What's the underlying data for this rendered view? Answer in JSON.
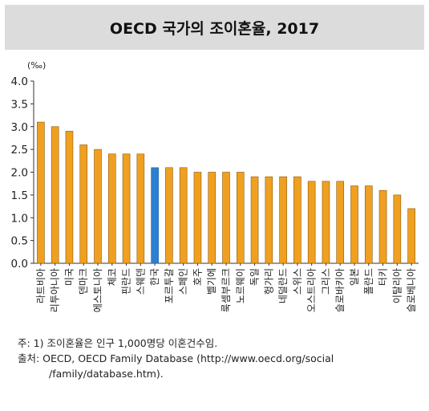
{
  "title": "OECD 국가의 조이혼율, 2017",
  "notes": {
    "line1": "주: 1) 조이혼율은 인구 1,000명당 이혼건수임.",
    "line2": "출처: OECD, OECD Family Database (http://www.oecd.org/social",
    "line3": "/family/database.htm)."
  },
  "colors": {
    "bar": "#f0a020",
    "highlight": "#2c7fd1",
    "bar_edge": "#8a5a10"
  },
  "chart_data": {
    "type": "bar",
    "title": "OECD 국가의 조이혼율, 2017",
    "unit_label": "(‰)",
    "ylim": [
      0,
      4
    ],
    "yticks": [
      "0.0",
      "0.5",
      "1.0",
      "1.5",
      "2.0",
      "2.5",
      "3.0",
      "3.5",
      "4.0"
    ],
    "grid": false,
    "categories": [
      "라트비아",
      "리투아니아",
      "미국",
      "덴마크",
      "에스토니아",
      "체코",
      "핀란드",
      "스웨덴",
      "한국",
      "포르투갈",
      "스페인",
      "호주",
      "벨기에",
      "룩셈부르크",
      "노르웨이",
      "독일",
      "헝가리",
      "네덜란드",
      "스위스",
      "오스트리아",
      "그리스",
      "슬로바키아",
      "일본",
      "폴란드",
      "터키",
      "이탈리아",
      "슬로베니아"
    ],
    "values": [
      3.1,
      3.0,
      2.9,
      2.6,
      2.5,
      2.4,
      2.4,
      2.4,
      2.1,
      2.1,
      2.1,
      2.0,
      2.0,
      2.0,
      2.0,
      1.9,
      1.9,
      1.9,
      1.9,
      1.8,
      1.8,
      1.8,
      1.7,
      1.7,
      1.6,
      1.5,
      1.2
    ],
    "highlight": "한국"
  }
}
